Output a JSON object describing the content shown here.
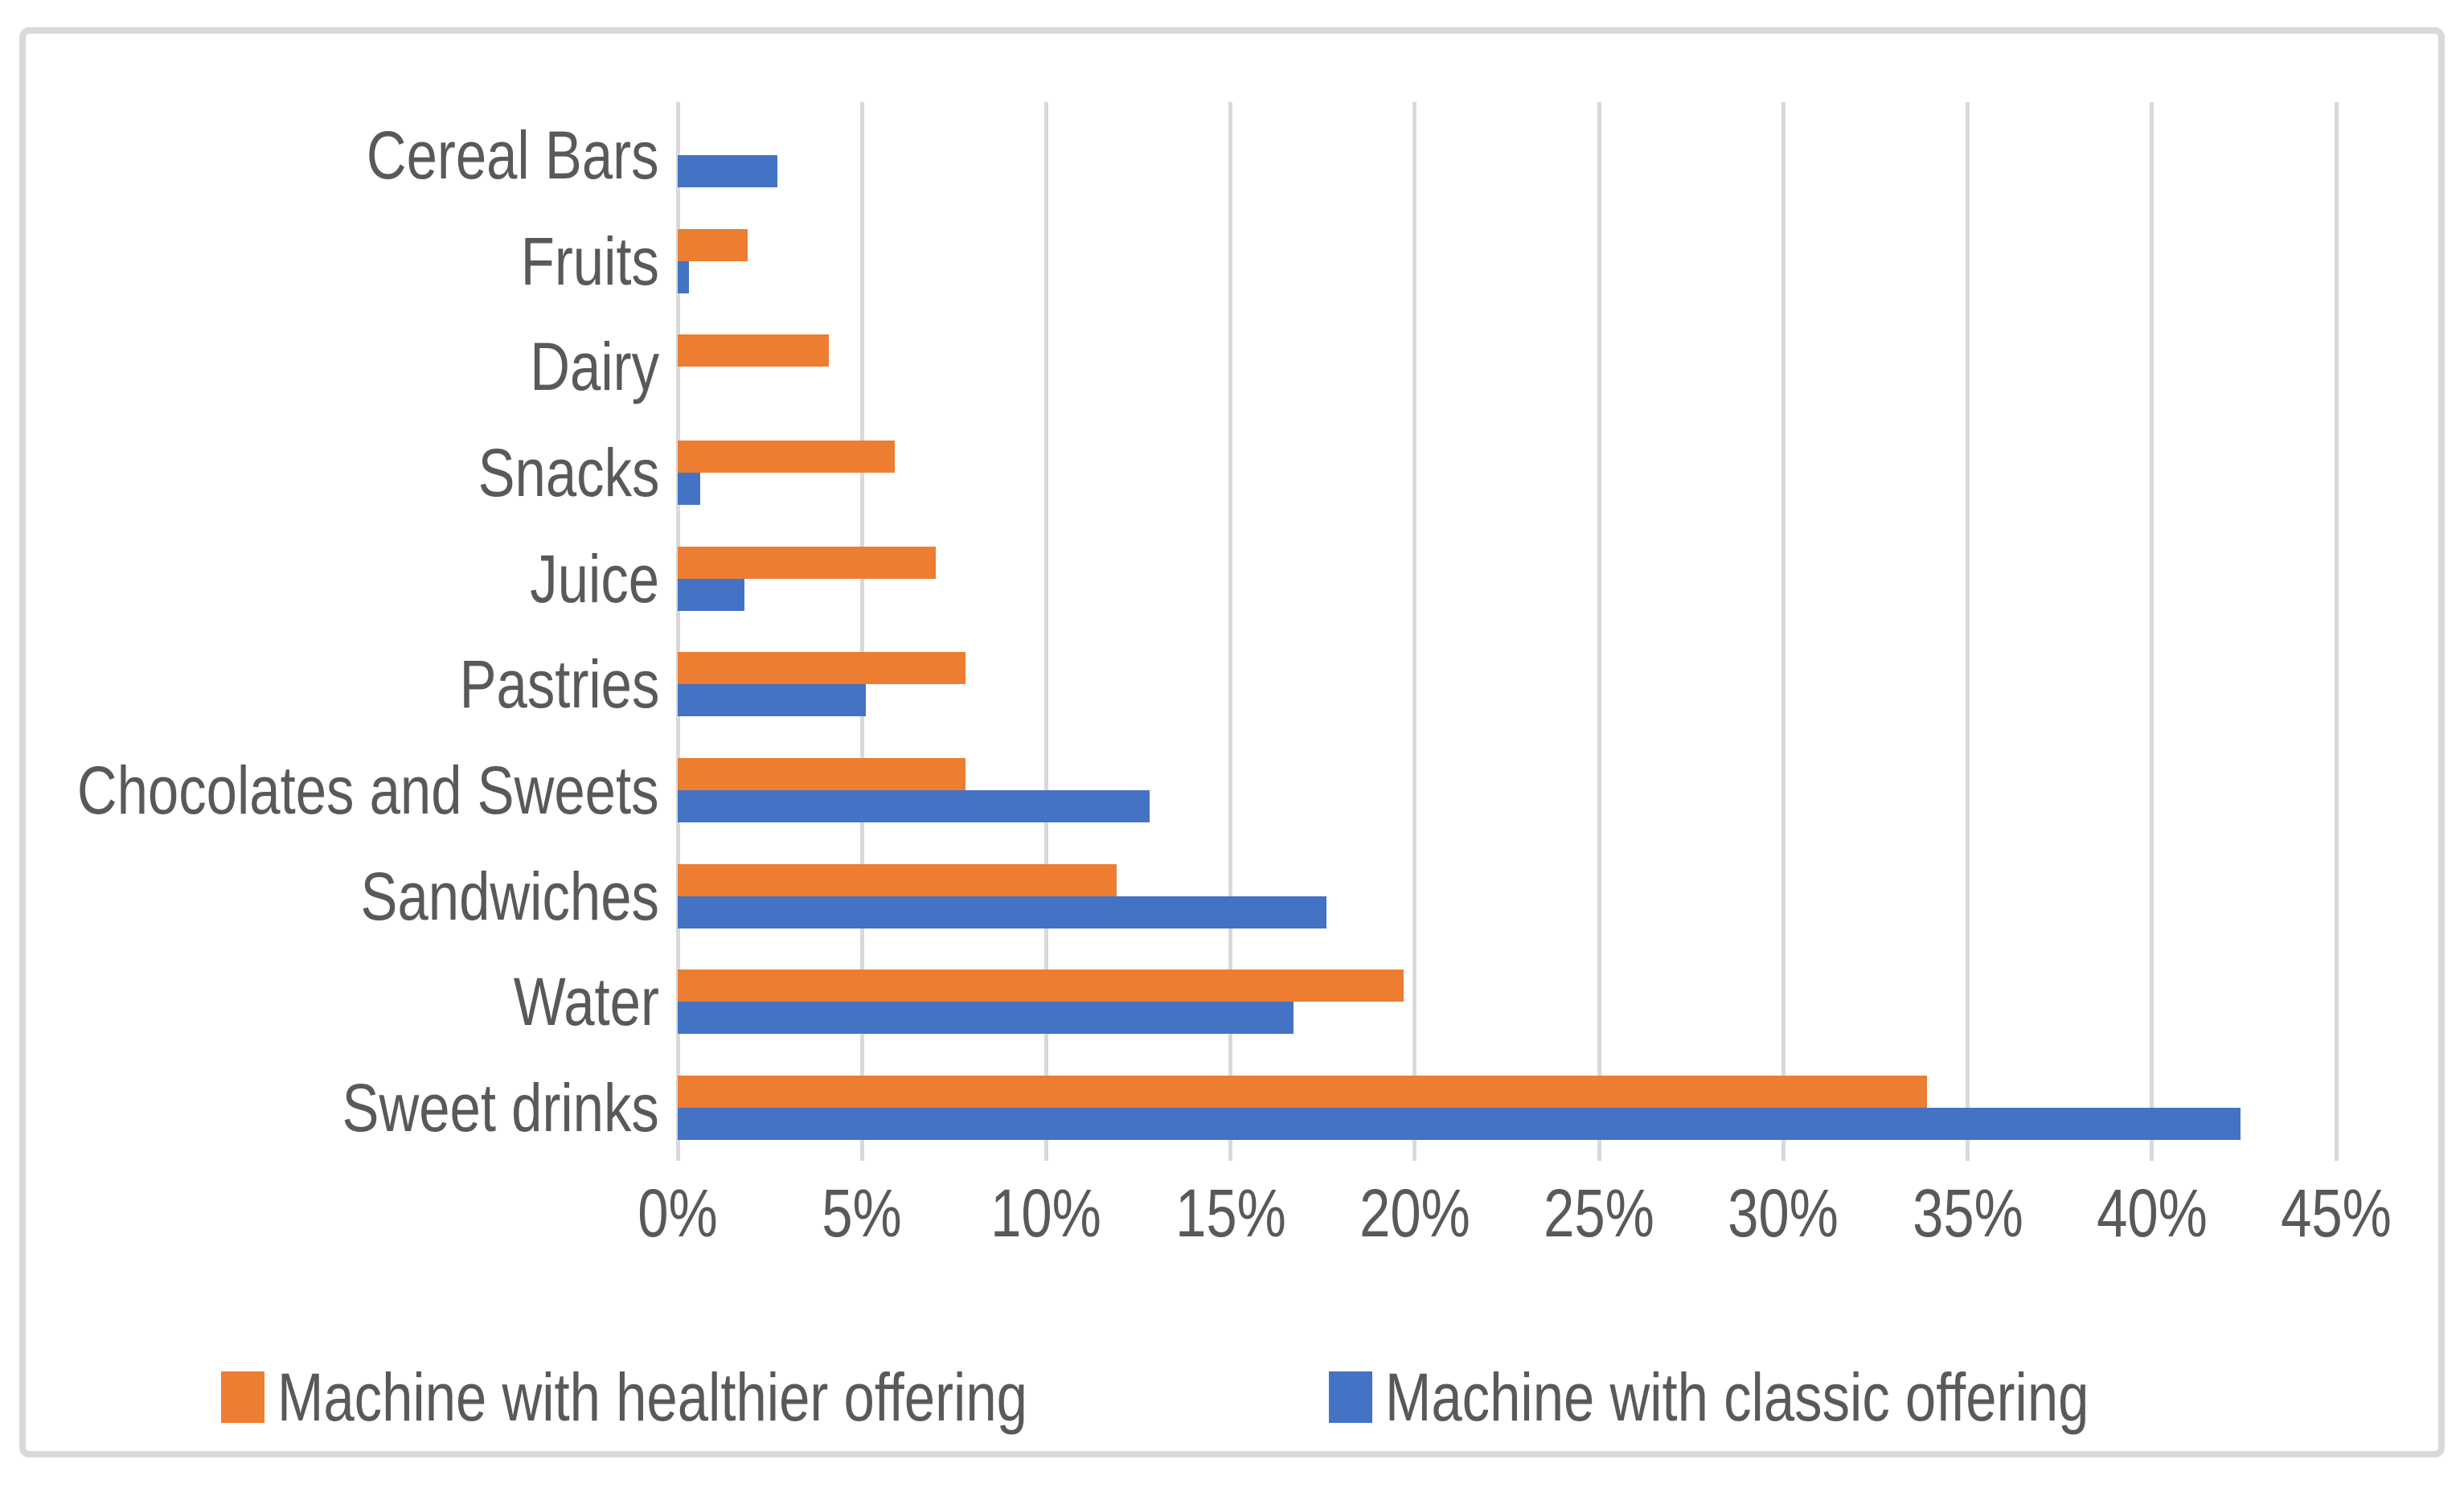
{
  "figure": {
    "background": "#FFFFFF",
    "border_color": "#D9D9D9"
  },
  "chart_data": {
    "type": "bar",
    "orientation": "horizontal",
    "title": "",
    "xlabel": "",
    "ylabel": "",
    "categories": [
      "Cereal Bars",
      "Fruits",
      "Dairy",
      "Snacks",
      "Juice",
      "Pastries",
      "Chocolates and Sweets",
      "Sandwiches",
      "Water",
      "Sweet drinks"
    ],
    "series": [
      {
        "name": "Machine with healthier offering",
        "color": "#ED7D31",
        "values": [
          0,
          1.9,
          4.1,
          5.9,
          7.0,
          7.8,
          7.8,
          11.9,
          19.7,
          33.9
        ]
      },
      {
        "name": "Machine with classic offering",
        "color": "#4472C4",
        "values": [
          2.7,
          0.3,
          0,
          0.6,
          1.8,
          5.1,
          12.8,
          17.6,
          16.7,
          42.4
        ]
      }
    ],
    "x_ticks": [
      "0%",
      "5%",
      "10%",
      "15%",
      "20%",
      "25%",
      "30%",
      "35%",
      "40%",
      "45%"
    ],
    "x_tick_values": [
      0,
      5,
      10,
      15,
      20,
      25,
      30,
      35,
      40,
      45
    ],
    "xlim": [
      0,
      46.3
    ],
    "grid": "vertical",
    "gridline_color": "#D9D9D9",
    "text_color": "#595959",
    "legend_position": "bottom"
  }
}
